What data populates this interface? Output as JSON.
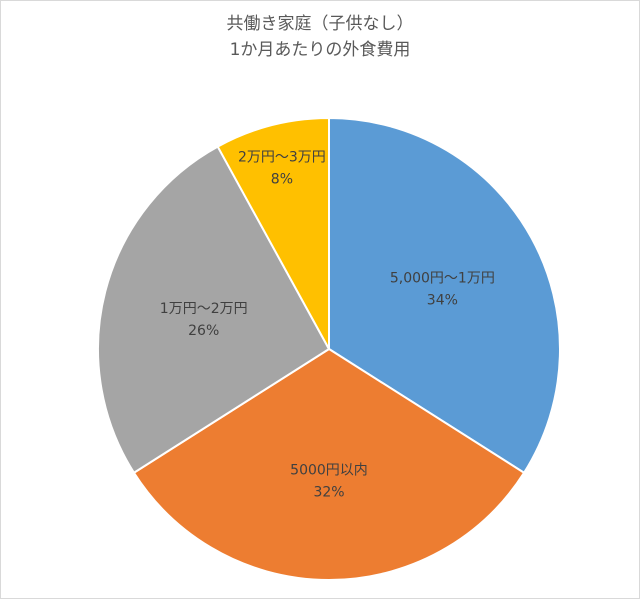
{
  "chart_data": {
    "type": "pie",
    "title": [
      "共働き家庭（子供なし）",
      "1か月あたりの外食費用"
    ],
    "slices": [
      {
        "label": "5,000円～1万円",
        "percent_label": "34%",
        "value": 34,
        "color": "#5b9bd5"
      },
      {
        "label": "5000円以内",
        "percent_label": "32%",
        "value": 32,
        "color": "#ed7d31"
      },
      {
        "label": "1万円～2万円",
        "percent_label": "26%",
        "value": 26,
        "color": "#a5a5a5"
      },
      {
        "label": "2万円～3万円",
        "percent_label": "8%",
        "value": 8,
        "color": "#ffc000"
      }
    ],
    "start_angle_deg": 0,
    "direction": "clockwise",
    "legend": "none"
  }
}
